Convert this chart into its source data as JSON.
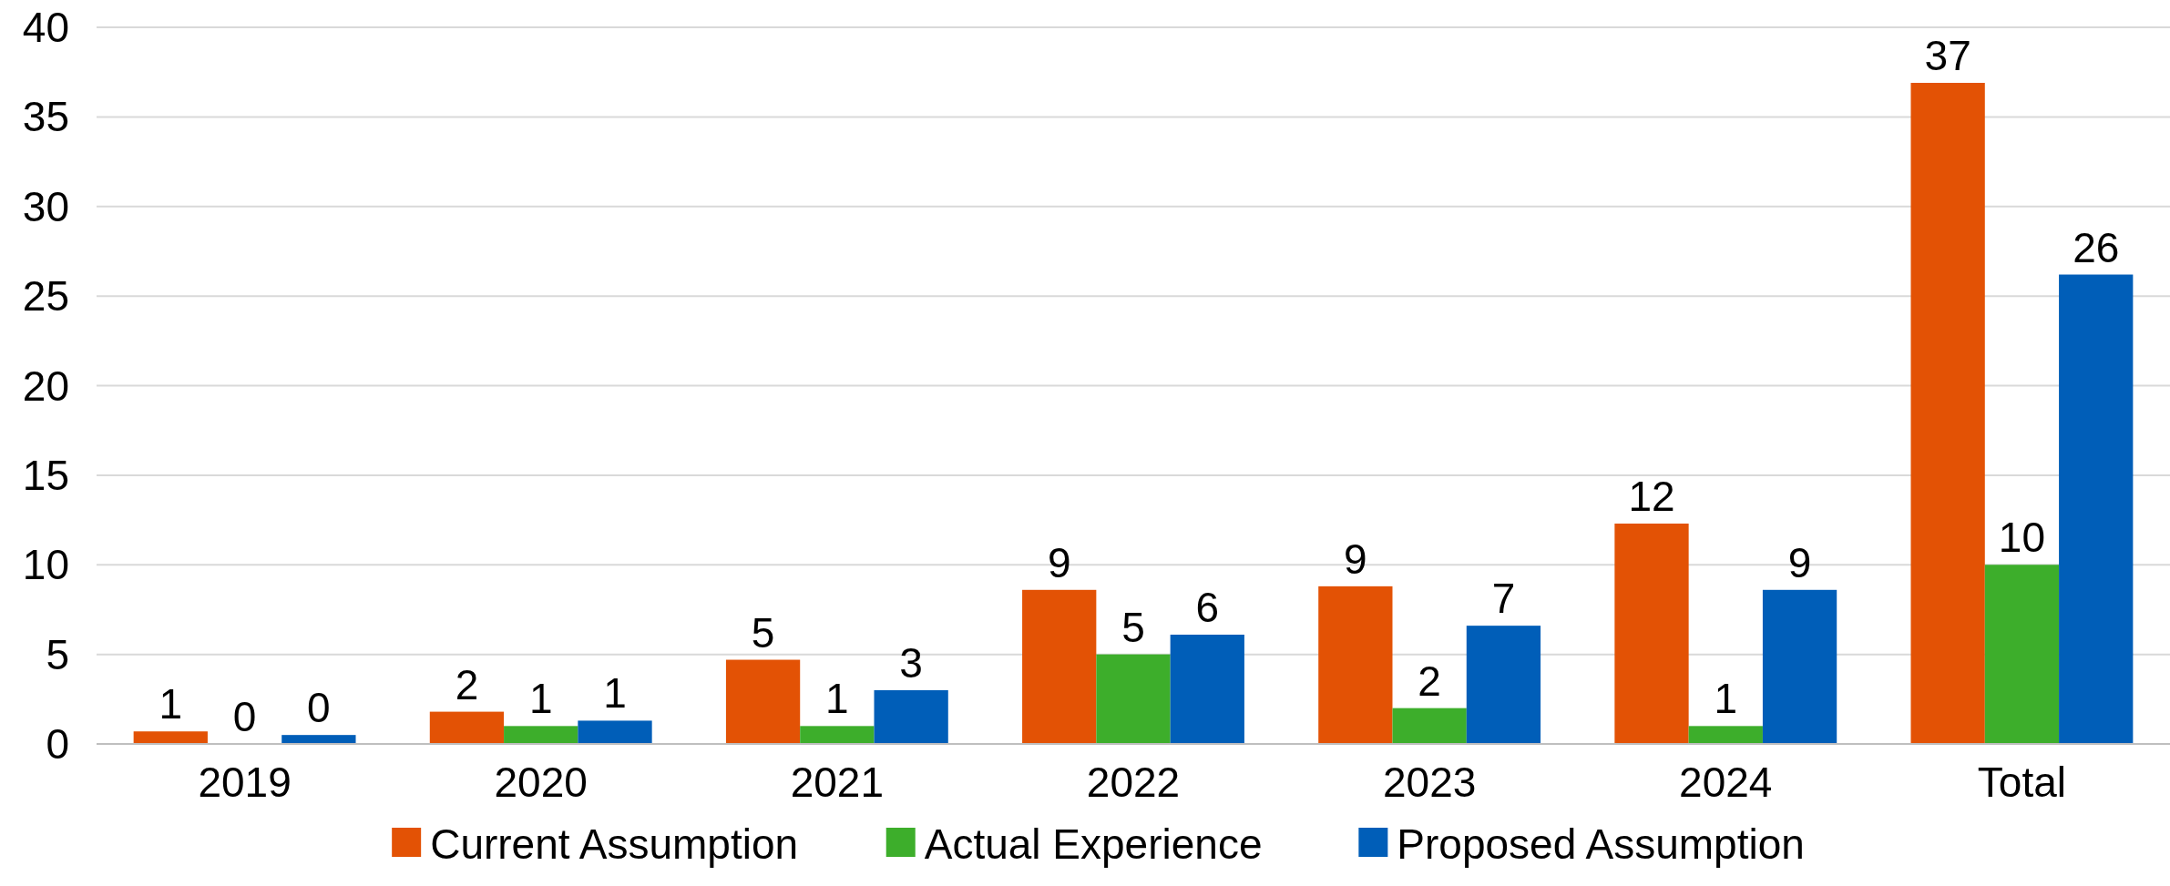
{
  "chart_data": {
    "type": "bar",
    "categories": [
      "2019",
      "2020",
      "2021",
      "2022",
      "2023",
      "2024",
      "Total"
    ],
    "series": [
      {
        "name": "Current Assumption",
        "color": "#e35205",
        "values": [
          0.7,
          1.8,
          4.7,
          8.6,
          8.8,
          12.3,
          36.9
        ],
        "value_labels": [
          "1",
          "2",
          "5",
          "9",
          "9",
          "12",
          "37"
        ]
      },
      {
        "name": "Actual Experience",
        "color": "#3dae2b",
        "values": [
          0,
          1.0,
          1.0,
          5.0,
          2.0,
          1.0,
          10.0
        ],
        "value_labels": [
          "0",
          "1",
          "1",
          "5",
          "2",
          "1",
          "10"
        ]
      },
      {
        "name": "Proposed Assumption",
        "color": "#005eb8",
        "values": [
          0.5,
          1.3,
          3.0,
          6.1,
          6.6,
          8.6,
          26.2
        ],
        "value_labels": [
          "0",
          "1",
          "3",
          "6",
          "7",
          "9",
          "26"
        ]
      }
    ],
    "ylim": [
      0,
      40
    ],
    "yticks": [
      0,
      5,
      10,
      15,
      20,
      25,
      30,
      35,
      40
    ],
    "grid": "y",
    "legend": "bottom"
  }
}
